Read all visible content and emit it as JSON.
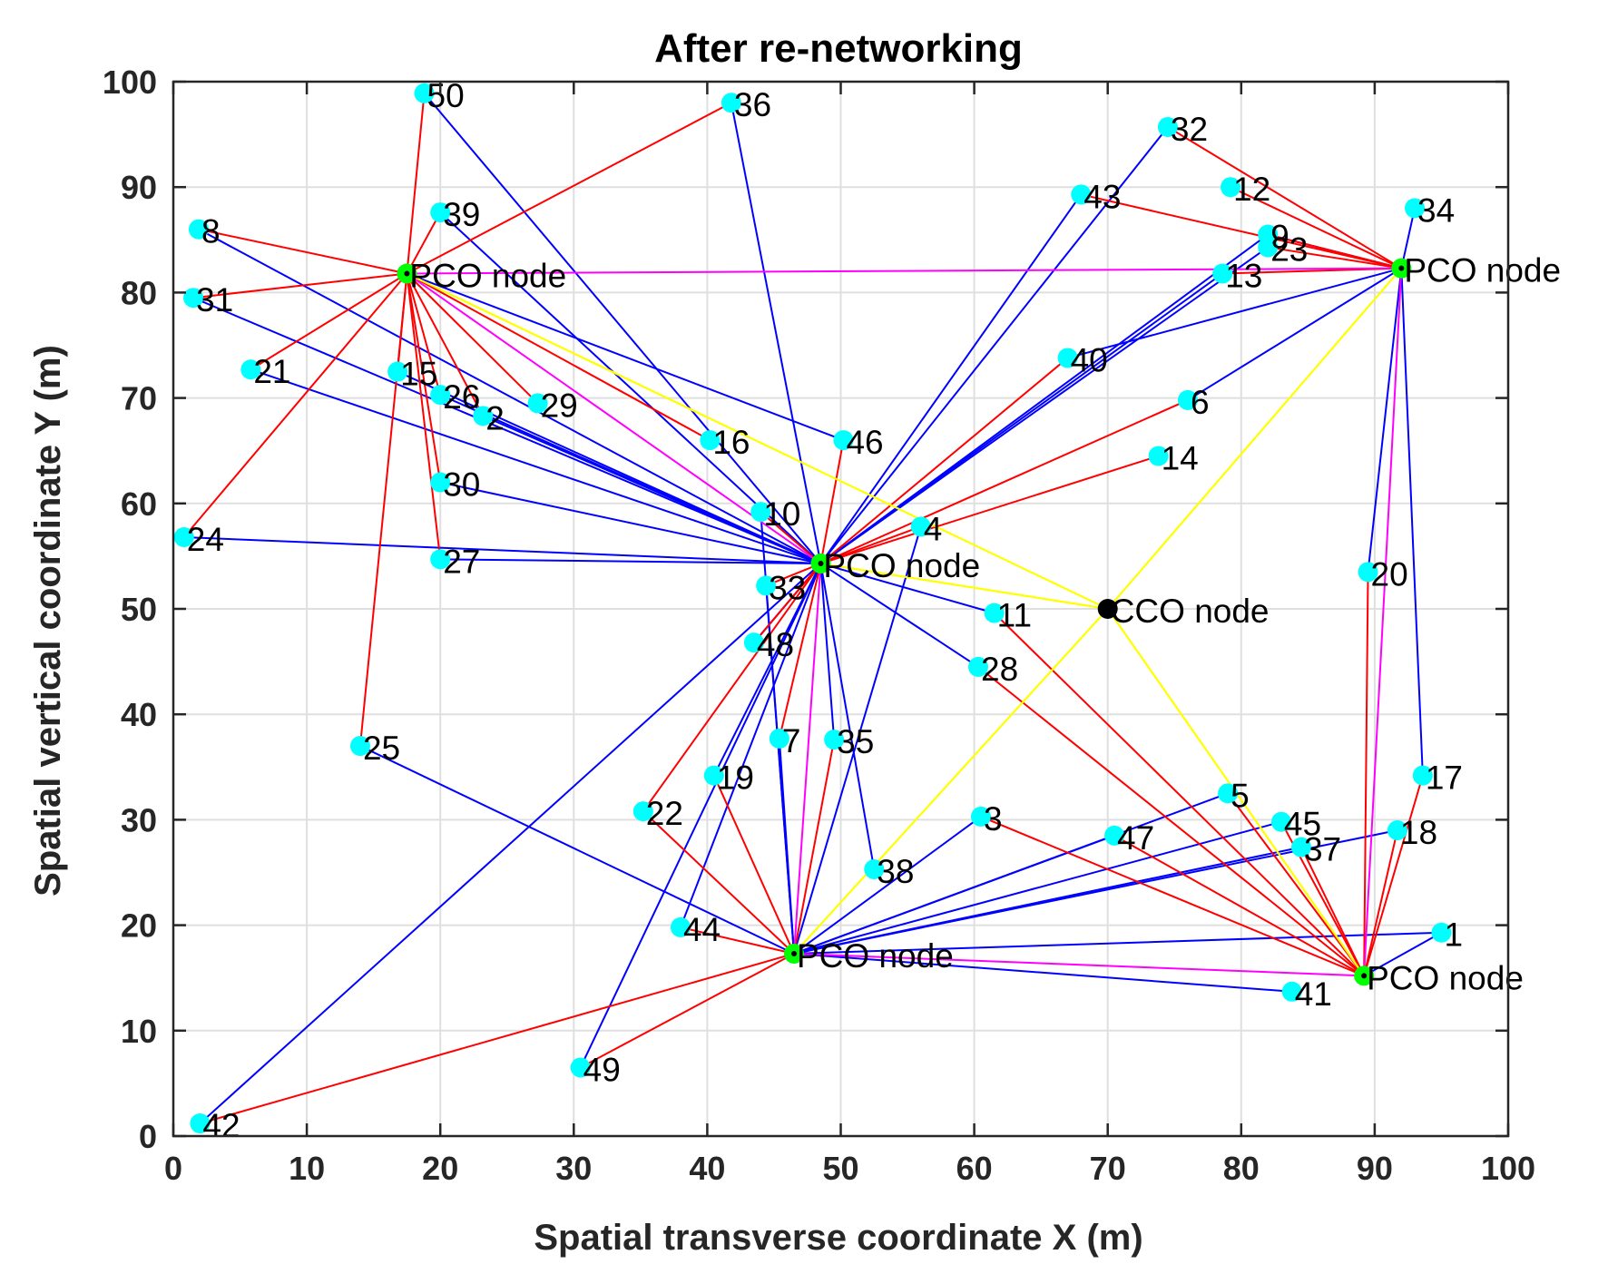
{
  "chart_data": {
    "type": "scatter",
    "title": "After re-networking",
    "xlabel": "Spatial transverse coordinate X (m)",
    "ylabel": "Spatial vertical coordinate Y (m)",
    "xlim": [
      0,
      100
    ],
    "ylim": [
      0,
      100
    ],
    "xticks": [
      0,
      10,
      20,
      30,
      40,
      50,
      60,
      70,
      80,
      90,
      100
    ],
    "yticks": [
      0,
      10,
      20,
      30,
      40,
      50,
      60,
      70,
      80,
      90,
      100
    ],
    "grid": true,
    "colors": {
      "node": "#00ffff",
      "pco": "#00ff00",
      "cco": "#000000",
      "red_link": "#ff0000",
      "blue_link": "#0000ff",
      "magenta_link": "#ff00ff",
      "yellow_link": "#ffff00"
    },
    "nodes": [
      {
        "id": "1",
        "x": 95,
        "y": 19.3
      },
      {
        "id": "2",
        "x": 23.2,
        "y": 68.3
      },
      {
        "id": "3",
        "x": 60.5,
        "y": 30.3
      },
      {
        "id": "4",
        "x": 56,
        "y": 57.8
      },
      {
        "id": "5",
        "x": 79,
        "y": 32.5
      },
      {
        "id": "6",
        "x": 76,
        "y": 69.8
      },
      {
        "id": "7",
        "x": 45.4,
        "y": 37.7
      },
      {
        "id": "8",
        "x": 1.9,
        "y": 86
      },
      {
        "id": "9",
        "x": 82,
        "y": 85.5
      },
      {
        "id": "10",
        "x": 44,
        "y": 59.2
      },
      {
        "id": "11",
        "x": 61.5,
        "y": 49.6
      },
      {
        "id": "12",
        "x": 79.2,
        "y": 90
      },
      {
        "id": "13",
        "x": 78.6,
        "y": 81.8
      },
      {
        "id": "14",
        "x": 73.8,
        "y": 64.5
      },
      {
        "id": "15",
        "x": 16.8,
        "y": 72.5
      },
      {
        "id": "16",
        "x": 40.2,
        "y": 66
      },
      {
        "id": "17",
        "x": 93.6,
        "y": 34.2
      },
      {
        "id": "18",
        "x": 91.7,
        "y": 29
      },
      {
        "id": "19",
        "x": 40.5,
        "y": 34.2
      },
      {
        "id": "20",
        "x": 89.5,
        "y": 53.5
      },
      {
        "id": "21",
        "x": 5.8,
        "y": 72.7
      },
      {
        "id": "22",
        "x": 35.2,
        "y": 30.8
      },
      {
        "id": "23",
        "x": 82,
        "y": 84.3
      },
      {
        "id": "24",
        "x": 0.8,
        "y": 56.8
      },
      {
        "id": "25",
        "x": 14,
        "y": 37
      },
      {
        "id": "26",
        "x": 20,
        "y": 70.3
      },
      {
        "id": "27",
        "x": 20,
        "y": 54.7
      },
      {
        "id": "28",
        "x": 60.3,
        "y": 44.5
      },
      {
        "id": "29",
        "x": 27.3,
        "y": 69.5
      },
      {
        "id": "30",
        "x": 20,
        "y": 62
      },
      {
        "id": "31",
        "x": 1.5,
        "y": 79.5
      },
      {
        "id": "32",
        "x": 74.5,
        "y": 95.7
      },
      {
        "id": "33",
        "x": 44.4,
        "y": 52.2
      },
      {
        "id": "34",
        "x": 93,
        "y": 88
      },
      {
        "id": "35",
        "x": 49.5,
        "y": 37.6
      },
      {
        "id": "36",
        "x": 41.8,
        "y": 98
      },
      {
        "id": "37",
        "x": 84.5,
        "y": 27.4
      },
      {
        "id": "38",
        "x": 52.5,
        "y": 25.3
      },
      {
        "id": "39",
        "x": 20,
        "y": 87.6
      },
      {
        "id": "40",
        "x": 67,
        "y": 73.8
      },
      {
        "id": "41",
        "x": 83.8,
        "y": 13.7
      },
      {
        "id": "42",
        "x": 2,
        "y": 1.2
      },
      {
        "id": "43",
        "x": 68,
        "y": 89.3
      },
      {
        "id": "44",
        "x": 38,
        "y": 19.8
      },
      {
        "id": "45",
        "x": 83,
        "y": 29.8
      },
      {
        "id": "46",
        "x": 50.2,
        "y": 66
      },
      {
        "id": "47",
        "x": 70.5,
        "y": 28.5
      },
      {
        "id": "48",
        "x": 43.5,
        "y": 46.8
      },
      {
        "id": "49",
        "x": 30.5,
        "y": 6.5
      },
      {
        "id": "50",
        "x": 18.8,
        "y": 98.9
      }
    ],
    "pco_nodes": [
      {
        "label": "PCO node",
        "x": 17.5,
        "y": 81.8
      },
      {
        "label": "PCO node",
        "x": 48.5,
        "y": 54.3
      },
      {
        "label": "PCO node",
        "x": 92,
        "y": 82.3
      },
      {
        "label": "PCO node",
        "x": 46.5,
        "y": 17.3
      },
      {
        "label": "PCO node",
        "x": 89.2,
        "y": 15.2
      }
    ],
    "cco_node": {
      "label": "CCO node",
      "x": 70,
      "y": 50
    },
    "links": {
      "red": [
        [
          "P0",
          "50"
        ],
        [
          "P0",
          "36"
        ],
        [
          "P0",
          "8"
        ],
        [
          "P0",
          "31"
        ],
        [
          "P0",
          "21"
        ],
        [
          "P0",
          "24"
        ],
        [
          "P0",
          "25"
        ],
        [
          "P0",
          "15"
        ],
        [
          "P0",
          "26"
        ],
        [
          "P0",
          "2"
        ],
        [
          "P0",
          "29"
        ],
        [
          "P0",
          "30"
        ],
        [
          "P0",
          "27"
        ],
        [
          "P0",
          "16"
        ],
        [
          "P0",
          "39"
        ],
        [
          "P1",
          "40"
        ],
        [
          "P1",
          "6"
        ],
        [
          "P1",
          "14"
        ],
        [
          "P1",
          "4"
        ],
        [
          "P1",
          "46"
        ],
        [
          "P1",
          "33"
        ],
        [
          "P1",
          "48"
        ],
        [
          "P1",
          "22"
        ],
        [
          "P1",
          "7"
        ],
        [
          "P1",
          "10"
        ],
        [
          "P2",
          "32"
        ],
        [
          "P2",
          "12"
        ],
        [
          "P2",
          "43"
        ],
        [
          "P2",
          "9"
        ],
        [
          "P2",
          "23"
        ],
        [
          "P2",
          "13"
        ],
        [
          "P3",
          "42"
        ],
        [
          "P3",
          "49"
        ],
        [
          "P3",
          "19"
        ],
        [
          "P3",
          "35"
        ],
        [
          "P3",
          "22"
        ],
        [
          "P3",
          "44"
        ],
        [
          "P4",
          "28"
        ],
        [
          "P4",
          "3"
        ],
        [
          "P4",
          "5"
        ],
        [
          "P4",
          "45"
        ],
        [
          "P4",
          "37"
        ],
        [
          "P4",
          "47"
        ],
        [
          "P4",
          "17"
        ],
        [
          "P4",
          "18"
        ],
        [
          "P4",
          "20"
        ],
        [
          "P4",
          "11"
        ]
      ],
      "blue": [
        [
          "P1",
          "50"
        ],
        [
          "P1",
          "39"
        ],
        [
          "P1",
          "8"
        ],
        [
          "P1",
          "31"
        ],
        [
          "P1",
          "21"
        ],
        [
          "P1",
          "2"
        ],
        [
          "P1",
          "26"
        ],
        [
          "P1",
          "15"
        ],
        [
          "P1",
          "30"
        ],
        [
          "P1",
          "24"
        ],
        [
          "P1",
          "27"
        ],
        [
          "P1",
          "11"
        ],
        [
          "P1",
          "28"
        ],
        [
          "P1",
          "36"
        ],
        [
          "P1",
          "43"
        ],
        [
          "P1",
          "32"
        ],
        [
          "P1",
          "9"
        ],
        [
          "P1",
          "23"
        ],
        [
          "P1",
          "13"
        ],
        [
          "P1",
          "35"
        ],
        [
          "P1",
          "38"
        ],
        [
          "P1",
          "19"
        ],
        [
          "P1",
          "44"
        ],
        [
          "P1",
          "42"
        ],
        [
          "P1",
          "49"
        ],
        [
          "P1",
          "48"
        ],
        [
          "P0",
          "46"
        ],
        [
          "P2",
          "34"
        ],
        [
          "P2",
          "20"
        ],
        [
          "P2",
          "17"
        ],
        [
          "P2",
          "40"
        ],
        [
          "P2",
          "6"
        ],
        [
          "P2",
          "9"
        ],
        [
          "P3",
          "25"
        ],
        [
          "P3",
          "5"
        ],
        [
          "P3",
          "45"
        ],
        [
          "P3",
          "37"
        ],
        [
          "P3",
          "47"
        ],
        [
          "P3",
          "3"
        ],
        [
          "P3",
          "18"
        ],
        [
          "P3",
          "1"
        ],
        [
          "P3",
          "41"
        ],
        [
          "P3",
          "4"
        ],
        [
          "P3",
          "7"
        ],
        [
          "P3",
          "10"
        ],
        [
          "P3",
          "33"
        ],
        [
          "P4",
          "1"
        ]
      ],
      "magenta": [
        [
          "P0",
          "P2"
        ],
        [
          "P0",
          "P1"
        ],
        [
          "P1",
          "P3"
        ],
        [
          "P3",
          "P4"
        ],
        [
          "P2",
          "P4"
        ]
      ],
      "yellow": [
        [
          "C",
          "P0"
        ],
        [
          "C",
          "P1"
        ],
        [
          "C",
          "P2"
        ],
        [
          "C",
          "P3"
        ],
        [
          "C",
          "P4"
        ]
      ]
    }
  }
}
